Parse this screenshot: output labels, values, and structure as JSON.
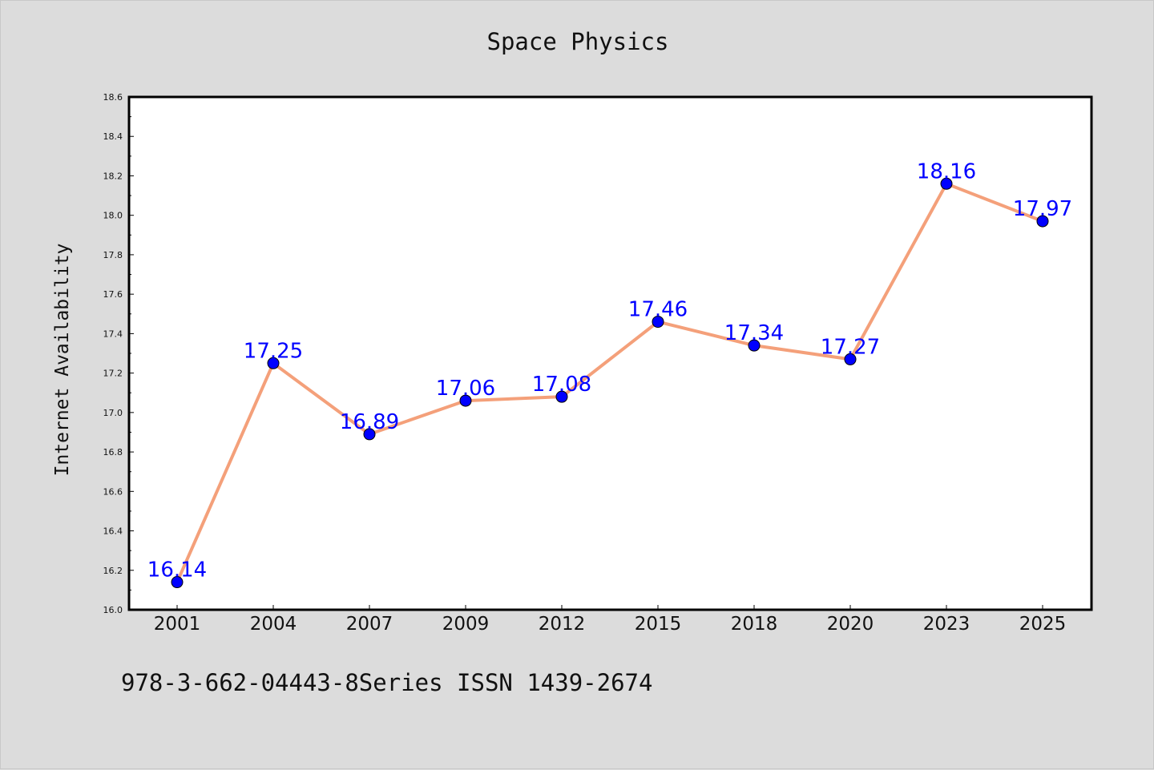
{
  "chart_data": {
    "type": "line",
    "title": "Space Physics",
    "xlabel": "",
    "ylabel": "Internet Availability",
    "categories": [
      "2001",
      "2004",
      "2007",
      "2009",
      "2012",
      "2015",
      "2018",
      "2020",
      "2023",
      "2025"
    ],
    "values": [
      16.14,
      17.25,
      16.89,
      17.06,
      17.08,
      17.46,
      17.34,
      17.27,
      18.16,
      17.97
    ],
    "data_labels": [
      "16.14",
      "17.25",
      "16.89",
      "17.06",
      "17.08",
      "17.46",
      "17.34",
      "17.27",
      "18.16",
      "17.97"
    ],
    "ylim": [
      16.0,
      18.6
    ],
    "yticks": [
      "16.0",
      "16.2",
      "16.4",
      "16.6",
      "16.8",
      "17.0",
      "17.2",
      "17.4",
      "17.6",
      "17.8",
      "18.0",
      "18.2",
      "18.4",
      "18.6"
    ],
    "grid": false,
    "line_color": "#f4a07a",
    "marker_color": "#0000ff",
    "label_color": "#0000ff"
  },
  "footer_text": "978-3-662-04443-8Series ISSN 1439-2674"
}
